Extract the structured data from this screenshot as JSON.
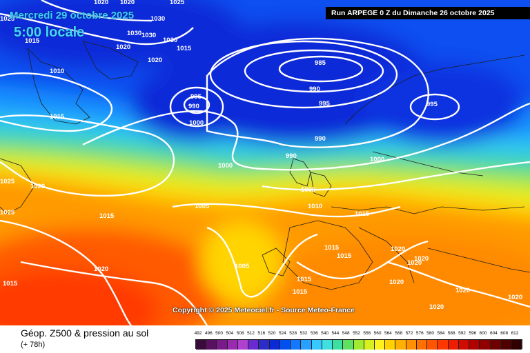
{
  "header": {
    "date_label": "Mercredi 29 octobre 2025",
    "time_label": "5:00 locale",
    "run_label": "Run ARPEGE 0 Z du Dimanche 26 octobre 2025"
  },
  "footer": {
    "copyright": "Copyright © 2025 Meteociel.fr - Source Meteo-France"
  },
  "legend": {
    "title": "Géop. Z500 & pression au sol",
    "subtitle": "(+ 78h)",
    "scale_values": [
      "492",
      "496",
      "500",
      "504",
      "508",
      "512",
      "516",
      "520",
      "524",
      "528",
      "532",
      "536",
      "540",
      "544",
      "548",
      "552",
      "556",
      "560",
      "564",
      "568",
      "572",
      "576",
      "580",
      "584",
      "588",
      "592",
      "596",
      "600",
      "604",
      "608",
      "612"
    ],
    "scale_colors": [
      "#3a0a3a",
      "#5a1060",
      "#7a1a8a",
      "#9a2ab0",
      "#b040d0",
      "#6a2ad0",
      "#2c2cc8",
      "#0a2ad8",
      "#0050f0",
      "#1478ff",
      "#28a0ff",
      "#36c8ff",
      "#40e0e0",
      "#3ae0a0",
      "#60e060",
      "#a0ea30",
      "#d8f020",
      "#fff020",
      "#ffd200",
      "#ffb000",
      "#ff9000",
      "#ff7000",
      "#ff5400",
      "#ff3800",
      "#f01c00",
      "#d00c00",
      "#b00000",
      "#900000",
      "#700000",
      "#500000",
      "#300000"
    ]
  },
  "isobar_labels": [
    "985",
    "990",
    "995",
    "990",
    "995",
    "990",
    "995",
    "1000",
    "1000",
    "990",
    "1000",
    "1005",
    "1005",
    "1010",
    "1015",
    "1005",
    "1015",
    "1015",
    "1020",
    "1020",
    "1020",
    "1020",
    "1020",
    "1020",
    "1020",
    "1020",
    "1025",
    "1025",
    "1015",
    "1010",
    "1015",
    "1015",
    "1015",
    "1020",
    "1025",
    "1020",
    "1030",
    "1030",
    "1030",
    "1030",
    "1015",
    "1020",
    "1020",
    "1025",
    "1015",
    "1015",
    "1020"
  ],
  "colors": {
    "low_pressure": "#0a2ac8",
    "high_pressure": "#ff6a00"
  }
}
